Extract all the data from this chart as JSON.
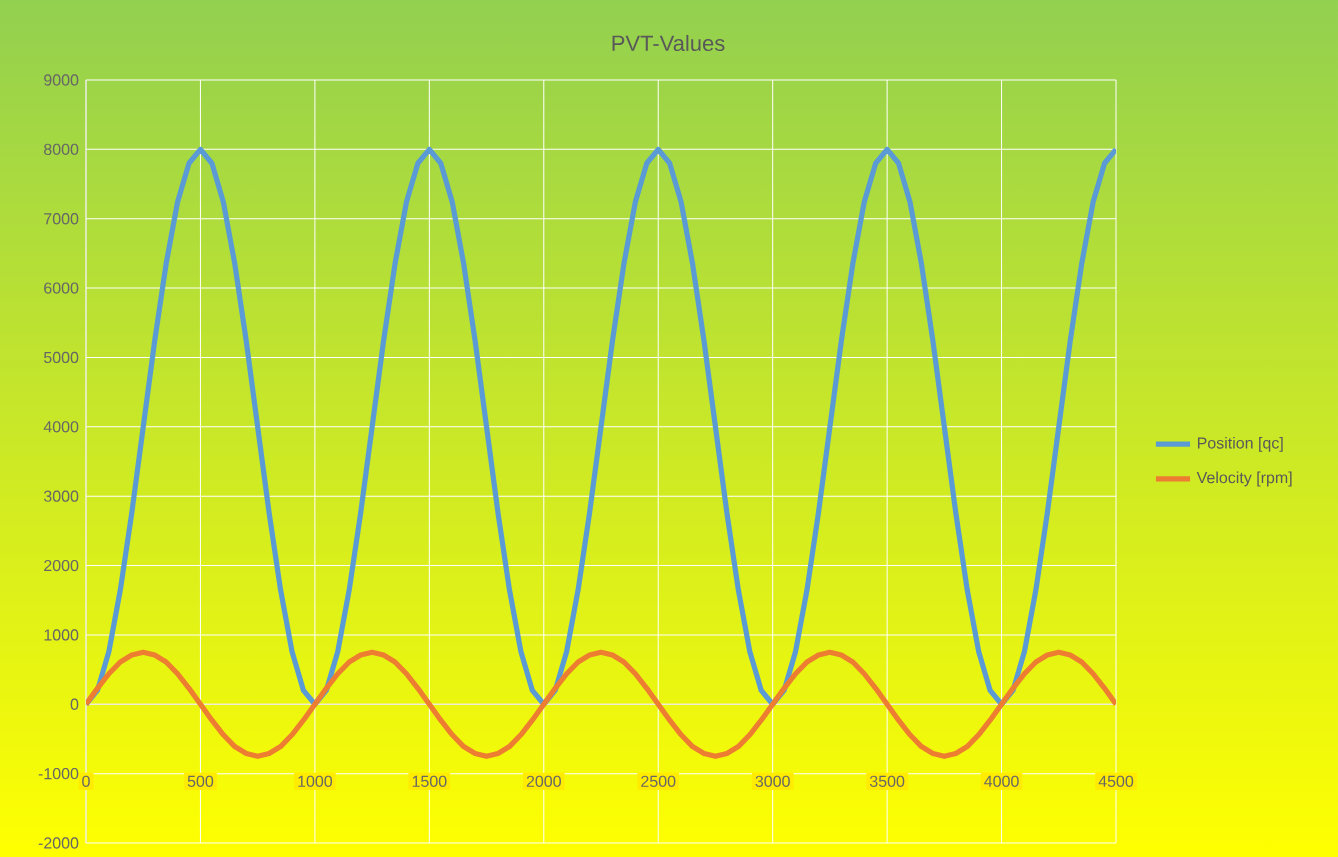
{
  "chart_data": {
    "type": "line",
    "title": "PVT-Values",
    "x": [
      0,
      50,
      100,
      150,
      200,
      250,
      300,
      350,
      400,
      450,
      500,
      550,
      600,
      650,
      700,
      750,
      800,
      850,
      900,
      950,
      1000,
      1050,
      1100,
      1150,
      1200,
      1250,
      1300,
      1350,
      1400,
      1450,
      1500,
      1550,
      1600,
      1650,
      1700,
      1750,
      1800,
      1850,
      1900,
      1950,
      2000,
      2050,
      2100,
      2150,
      2200,
      2250,
      2300,
      2350,
      2400,
      2450,
      2500,
      2550,
      2600,
      2650,
      2700,
      2750,
      2800,
      2850,
      2900,
      2950,
      3000,
      3050,
      3100,
      3150,
      3200,
      3250,
      3300,
      3350,
      3400,
      3450,
      3500,
      3550,
      3600,
      3650,
      3700,
      3750,
      3800,
      3850,
      3900,
      3950,
      4000,
      4050,
      4100,
      4150,
      4200,
      4250,
      4300,
      4350,
      4400,
      4450,
      4500
    ],
    "series": [
      {
        "name": "Position [qc]",
        "color": "#5b9bd5",
        "values": [
          0,
          200,
          760,
          1650,
          2760,
          4000,
          5240,
          6350,
          7240,
          7800,
          8000,
          7800,
          7240,
          6350,
          5240,
          4000,
          2760,
          1650,
          760,
          200,
          0,
          200,
          760,
          1650,
          2760,
          4000,
          5240,
          6350,
          7240,
          7800,
          8000,
          7800,
          7240,
          6350,
          5240,
          4000,
          2760,
          1650,
          760,
          200,
          0,
          200,
          760,
          1650,
          2760,
          4000,
          5240,
          6350,
          7240,
          7800,
          8000,
          7800,
          7240,
          6350,
          5240,
          4000,
          2760,
          1650,
          760,
          200,
          0,
          200,
          760,
          1650,
          2760,
          4000,
          5240,
          6350,
          7240,
          7800,
          8000,
          7800,
          7240,
          6350,
          5240,
          4000,
          2760,
          1650,
          760,
          200,
          0,
          200,
          760,
          1650,
          2760,
          4000,
          5240,
          6350,
          7240,
          7800,
          8000
        ]
      },
      {
        "name": "Velocity [rpm]",
        "color": "#ed7d31",
        "values": [
          0,
          230,
          440,
          610,
          710,
          750,
          710,
          610,
          440,
          230,
          0,
          -230,
          -440,
          -610,
          -710,
          -750,
          -710,
          -610,
          -440,
          -230,
          0,
          230,
          440,
          610,
          710,
          750,
          710,
          610,
          440,
          230,
          0,
          -230,
          -440,
          -610,
          -710,
          -750,
          -710,
          -610,
          -440,
          -230,
          0,
          230,
          440,
          610,
          710,
          750,
          710,
          610,
          440,
          230,
          0,
          -230,
          -440,
          -610,
          -710,
          -750,
          -710,
          -610,
          -440,
          -230,
          0,
          230,
          440,
          610,
          710,
          750,
          710,
          610,
          440,
          230,
          0,
          -230,
          -440,
          -610,
          -710,
          -750,
          -710,
          -610,
          -440,
          -230,
          0,
          230,
          440,
          610,
          710,
          750,
          710,
          610,
          440,
          230,
          0
        ]
      }
    ],
    "xlim": [
      0,
      4500
    ],
    "xticks": [
      0,
      500,
      1000,
      1500,
      2000,
      2500,
      3000,
      3500,
      4000,
      4500
    ],
    "ylim": [
      -2000,
      9000
    ],
    "yticks": [
      -2000,
      -1000,
      0,
      1000,
      2000,
      3000,
      4000,
      5000,
      6000,
      7000,
      8000,
      9000
    ],
    "grid": true,
    "legend": "right",
    "marker": "none",
    "line_style": "solid"
  }
}
